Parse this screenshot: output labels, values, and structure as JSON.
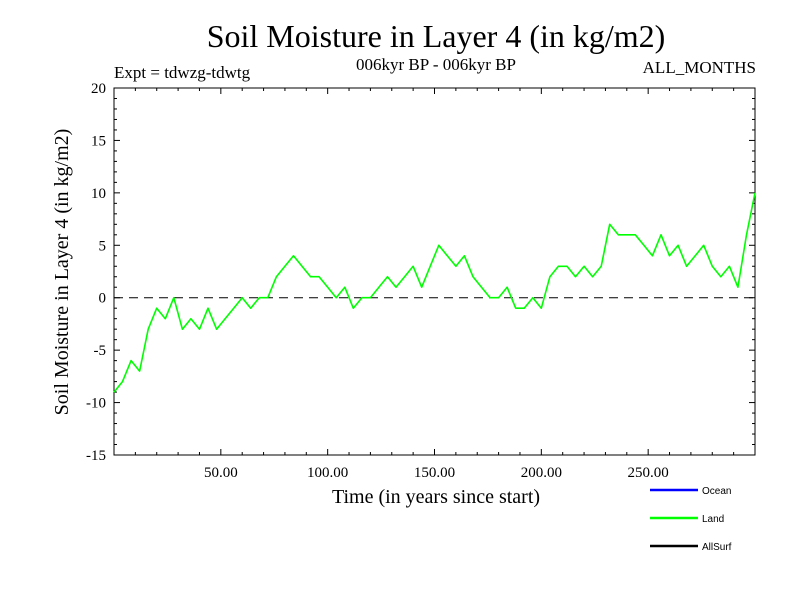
{
  "chart_data": {
    "type": "line",
    "title": "Soil Moisture in Layer 4 (in kg/m2)",
    "subtitle_left": "Expt = tdwzg-tdwtg",
    "subtitle_center": "006kyr BP - 006kyr BP",
    "subtitle_right": "ALL_MONTHS",
    "xlabel": "Time (in years since start)",
    "ylabel": "Soil Moisture in Layer 4 (in kg/m2)",
    "xlim": [
      0,
      300
    ],
    "ylim": [
      -15,
      20
    ],
    "x_ticks": [
      50,
      100,
      150,
      200,
      250
    ],
    "x_tick_labels": [
      "50.00",
      "100.00",
      "150.00",
      "200.00",
      "250.00"
    ],
    "y_ticks": [
      -15,
      -10,
      -5,
      0,
      5,
      10,
      15,
      20
    ],
    "y_tick_labels": [
      "-15",
      "-10",
      "-5",
      "0",
      "5",
      "10",
      "15",
      "20"
    ],
    "zero_line": "dashed",
    "legend_position": "bottom-right",
    "legend": [
      {
        "name": "Ocean",
        "color": "#0000ff"
      },
      {
        "name": "Land",
        "color": "#00ff00"
      },
      {
        "name": "AllSurf",
        "color": "#000000"
      }
    ],
    "series": [
      {
        "name": "Land",
        "color": "#00ff00",
        "x": [
          0,
          4,
          8,
          12,
          16,
          20,
          24,
          28,
          32,
          36,
          40,
          44,
          48,
          52,
          56,
          60,
          64,
          68,
          72,
          76,
          80,
          84,
          88,
          92,
          96,
          100,
          104,
          108,
          112,
          116,
          120,
          124,
          128,
          132,
          136,
          140,
          144,
          148,
          152,
          156,
          160,
          164,
          168,
          172,
          176,
          180,
          184,
          188,
          192,
          196,
          200,
          204,
          208,
          212,
          216,
          220,
          224,
          228,
          232,
          236,
          240,
          244,
          248,
          252,
          256,
          260,
          264,
          268,
          272,
          276,
          280,
          284,
          288,
          292,
          296,
          300
        ],
        "values": [
          -9,
          -8,
          -6,
          -7,
          -3,
          -1,
          -2,
          0,
          -3,
          -2,
          -3,
          -1,
          -3,
          -2,
          -1,
          0,
          -1,
          0,
          0,
          2,
          3,
          4,
          3,
          2,
          2,
          1,
          0,
          1,
          -1,
          0,
          0,
          1,
          2,
          1,
          2,
          3,
          1,
          3,
          5,
          4,
          3,
          4,
          2,
          1,
          0,
          0,
          1,
          -1,
          -1,
          0,
          -1,
          2,
          3,
          3,
          2,
          3,
          2,
          3,
          7,
          6,
          6,
          6,
          5,
          4,
          6,
          4,
          5,
          3,
          4,
          5,
          3,
          2,
          3,
          1,
          6,
          10
        ]
      }
    ]
  }
}
